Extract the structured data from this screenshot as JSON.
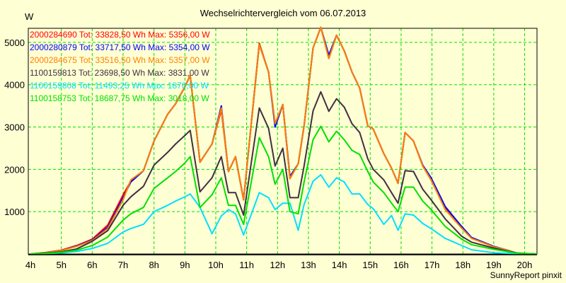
{
  "chart_data": {
    "type": "line",
    "title": "Wechselrichtervergleich vom 06.07.2013",
    "ylabel": "W",
    "xlabel": "",
    "xlim": [
      3.93,
      20.4
    ],
    "ylim": [
      0,
      5333
    ],
    "grid": true,
    "legend_position": "top-left",
    "x_ticks": [
      4,
      5,
      6,
      7,
      8,
      9,
      10,
      11,
      12,
      13,
      14,
      15,
      16,
      17,
      18,
      19,
      20
    ],
    "x_tick_labels": [
      "4h",
      "5h",
      "6h",
      "7h",
      "8h",
      "9h",
      "10h",
      "11h",
      "12h",
      "13h",
      "14h",
      "15h",
      "16h",
      "17h",
      "18h",
      "19h",
      "20h"
    ],
    "y_ticks": [
      1000,
      2000,
      3000,
      4000,
      5000
    ],
    "y_tick_labels": [
      "1000",
      "2000",
      "3000",
      "4000",
      "5000"
    ],
    "x": [
      4.0,
      4.5,
      5.0,
      5.5,
      6.0,
      6.5,
      7.0,
      7.25,
      7.66,
      8.0,
      8.44,
      8.7,
      9.0,
      9.17,
      9.49,
      9.88,
      10.18,
      10.41,
      10.64,
      10.9,
      11.41,
      11.71,
      11.92,
      12.17,
      12.4,
      12.67,
      12.86,
      13.15,
      13.4,
      13.66,
      13.91,
      14.16,
      14.41,
      14.66,
      14.92,
      15.1,
      15.44,
      15.69,
      15.9,
      16.13,
      16.4,
      16.7,
      16.97,
      17.43,
      17.96,
      18.28,
      19.0,
      19.49,
      19.79,
      20.4
    ],
    "series": [
      {
        "name": "2000284690",
        "legend": "2000284690 Tot: 33828,50 Wh Max: 5356,00 W",
        "color": "#ff0000",
        "values": [
          0,
          35,
          90,
          200,
          350,
          680,
          1400,
          1720,
          1970,
          2670,
          3300,
          3550,
          3950,
          4220,
          2170,
          2600,
          3400,
          1950,
          2300,
          1280,
          4980,
          4300,
          3080,
          3530,
          1780,
          2130,
          3030,
          4870,
          5356,
          4620,
          5170,
          4800,
          4300,
          3920,
          3030,
          2950,
          2370,
          2030,
          1670,
          2870,
          2670,
          2080,
          1750,
          1080,
          630,
          380,
          170,
          80,
          10,
          0
        ]
      },
      {
        "name": "2000280879",
        "legend": "2000280879 Tot: 33717,50 Wh Max: 5354,00 W",
        "color": "#0000ff",
        "values": [
          0,
          30,
          80,
          190,
          330,
          630,
          1330,
          1700,
          1970,
          2670,
          3300,
          3550,
          3950,
          4220,
          2170,
          2600,
          3500,
          1950,
          2300,
          1280,
          4950,
          4300,
          3000,
          3530,
          1830,
          2130,
          3030,
          4870,
          5354,
          4700,
          5170,
          4800,
          4300,
          3920,
          3030,
          2950,
          2370,
          2030,
          1670,
          2870,
          2670,
          2100,
          1800,
          1120,
          650,
          390,
          180,
          80,
          10,
          0
        ]
      },
      {
        "name": "2000284675",
        "legend": "2000284675 Tot: 33516,50 Wh Max: 5357,00 W",
        "color": "#ff8000",
        "values": [
          0,
          30,
          80,
          180,
          320,
          600,
          1280,
          1750,
          1970,
          2670,
          3300,
          3550,
          3950,
          4220,
          2170,
          2600,
          3450,
          1950,
          2300,
          1280,
          4950,
          4300,
          3080,
          3530,
          1780,
          2130,
          3030,
          4870,
          5357,
          4620,
          5170,
          4800,
          4300,
          3920,
          3030,
          2950,
          2370,
          2030,
          1670,
          2870,
          2670,
          2080,
          1750,
          1050,
          610,
          370,
          170,
          80,
          10,
          0
        ]
      },
      {
        "name": "1100159813",
        "legend": "1100159813 Tot: 23698,50 Wh Max: 3831,00 W",
        "color": "#403040",
        "values": [
          0,
          20,
          50,
          120,
          300,
          550,
          1150,
          1350,
          1600,
          2100,
          2400,
          2600,
          2800,
          2920,
          1470,
          1800,
          2300,
          1450,
          1450,
          920,
          3450,
          2970,
          2080,
          2500,
          1330,
          1330,
          2080,
          3380,
          3831,
          3370,
          3670,
          3470,
          3080,
          2870,
          2250,
          2000,
          1750,
          1450,
          1200,
          1970,
          1950,
          1530,
          1280,
          830,
          420,
          280,
          140,
          60,
          20,
          0
        ]
      },
      {
        "name": "1100159808",
        "legend": "1100159808 Tot: 11493,25 Wh Max: 1870,00 W",
        "color": "#00e0ff",
        "values": [
          0,
          10,
          25,
          60,
          130,
          250,
          520,
          600,
          700,
          1000,
          1150,
          1250,
          1350,
          1420,
          1100,
          480,
          900,
          1050,
          950,
          450,
          1450,
          1330,
          1050,
          1200,
          1200,
          560,
          1170,
          1720,
          1870,
          1580,
          1800,
          1700,
          1420,
          1420,
          1170,
          1070,
          700,
          910,
          560,
          950,
          920,
          720,
          600,
          370,
          200,
          100,
          30,
          15,
          5,
          0
        ]
      },
      {
        "name": "1100158753",
        "legend": "1100158753 Tot: 18687,75 Wh Max: 3018,00 W",
        "color": "#00e000",
        "values": [
          0,
          15,
          40,
          90,
          200,
          400,
          800,
          950,
          1100,
          1550,
          1800,
          1950,
          2150,
          2300,
          1100,
          1400,
          1800,
          1150,
          1150,
          700,
          2750,
          2300,
          1650,
          2000,
          1000,
          950,
          1700,
          2700,
          3018,
          2650,
          2900,
          2700,
          2450,
          2350,
          1950,
          1700,
          1450,
          1200,
          1000,
          1580,
          1580,
          1250,
          1050,
          650,
          350,
          220,
          110,
          50,
          15,
          0
        ]
      }
    ]
  },
  "footer": "SunnyReport pinxit"
}
